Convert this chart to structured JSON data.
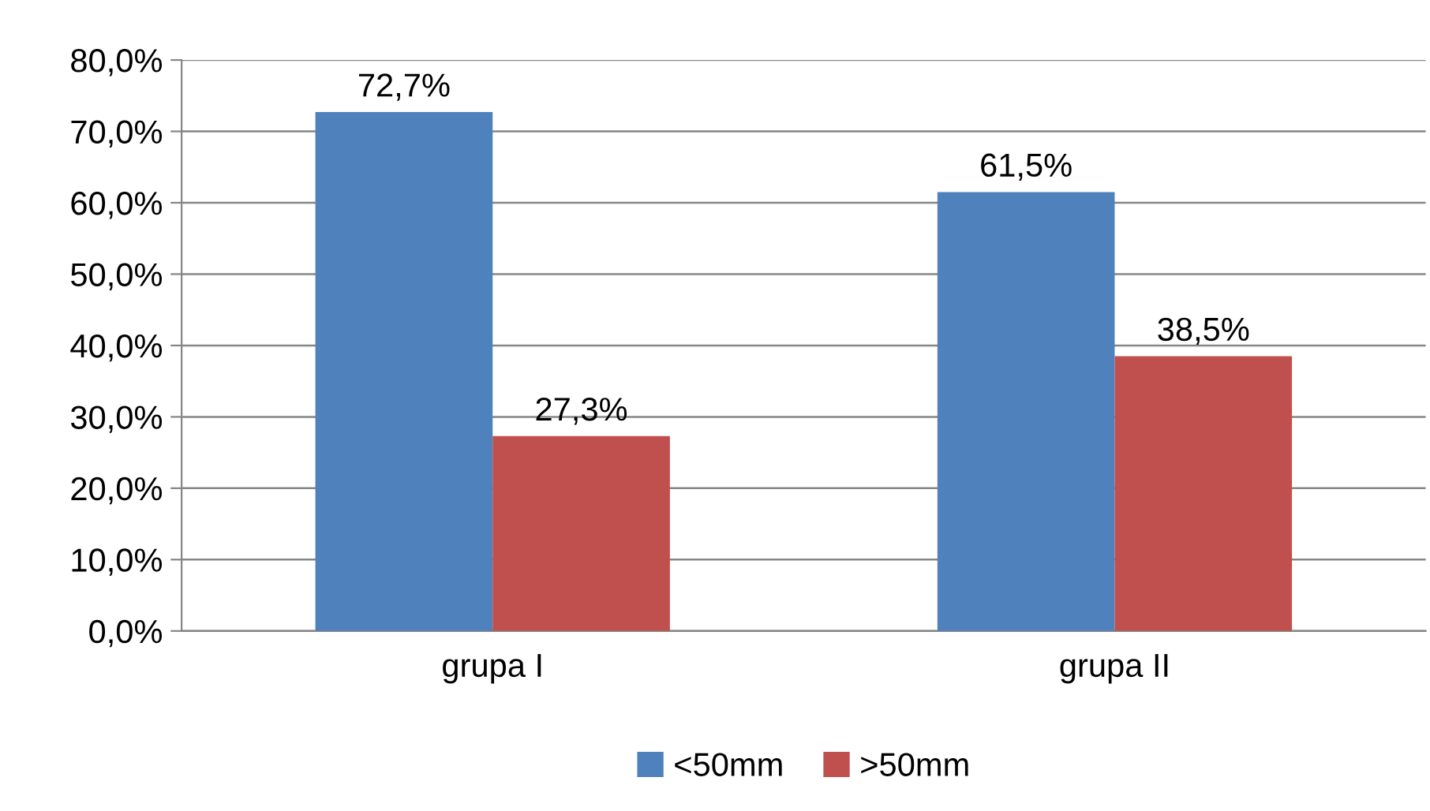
{
  "chart_data": {
    "type": "bar",
    "categories": [
      "grupa I",
      "grupa II"
    ],
    "series": [
      {
        "name": "<50mm",
        "color": "#4f81bd",
        "values": [
          72.7,
          61.5
        ],
        "value_labels": [
          "72,7%",
          "61,5%"
        ]
      },
      {
        "name": ">50mm",
        "color": "#c0504d",
        "values": [
          27.3,
          38.5
        ],
        "value_labels": [
          "27,3%",
          "38,5%"
        ]
      }
    ],
    "ylim": [
      0,
      80
    ],
    "yticks": [
      {
        "value": 0,
        "label": "0,0%"
      },
      {
        "value": 10,
        "label": "10,0%"
      },
      {
        "value": 20,
        "label": "20,0%"
      },
      {
        "value": 30,
        "label": "30,0%"
      },
      {
        "value": 40,
        "label": "40,0%"
      },
      {
        "value": 50,
        "label": "50,0%"
      },
      {
        "value": 60,
        "label": "60,0%"
      },
      {
        "value": 70,
        "label": "70,0%"
      },
      {
        "value": 80,
        "label": "80,0%"
      }
    ],
    "grid": "y",
    "legend": "bottom"
  }
}
